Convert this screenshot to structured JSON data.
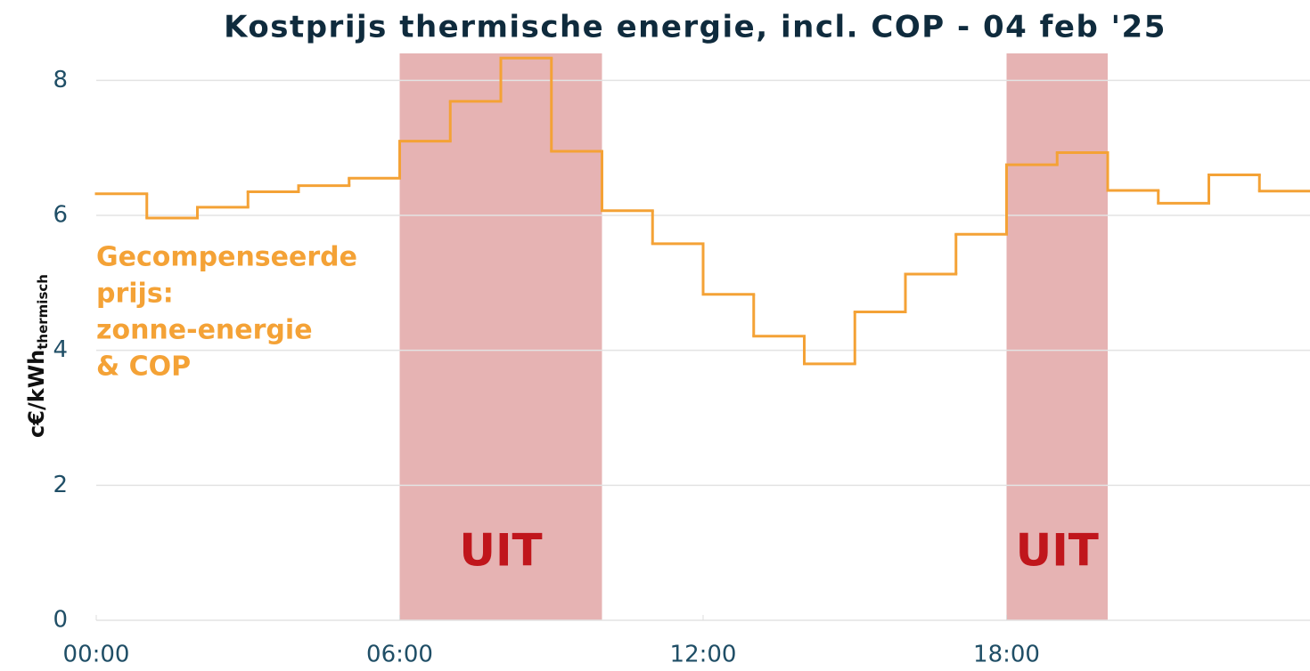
{
  "chart_data": {
    "type": "step",
    "title": "Kostprijs thermische energie, incl. COP - 04 feb '25",
    "y_label": "c€/kWh",
    "y_label_subscript": "thermisch",
    "annotation": [
      "Gecompenseerde",
      "prijs:",
      "zonne-energie",
      "& COP"
    ],
    "x": [
      0,
      1,
      2,
      3,
      4,
      5,
      6,
      7,
      8,
      9,
      10,
      11,
      12,
      13,
      14,
      15,
      16,
      17,
      18,
      19,
      20,
      21,
      22,
      23
    ],
    "series": [
      {
        "name": "Gecompenseerde prijs",
        "color": "#f4a236",
        "values": [
          6.32,
          5.96,
          6.12,
          6.35,
          6.44,
          6.55,
          7.1,
          7.69,
          8.33,
          6.95,
          6.07,
          5.58,
          4.83,
          4.21,
          3.8,
          4.57,
          5.13,
          5.72,
          6.75,
          6.93,
          6.37,
          6.18,
          6.6,
          6.36
        ]
      }
    ],
    "shaded_regions": [
      {
        "start": 6,
        "end": 10,
        "label": "UIT",
        "color": "#d98a8a"
      },
      {
        "start": 18,
        "end": 20,
        "label": "UIT",
        "color": "#d98a8a"
      }
    ],
    "xlim": [
      0,
      24
    ],
    "xticks": [
      {
        "value": 0,
        "label": "00:00"
      },
      {
        "value": 6,
        "label": "06:00"
      },
      {
        "value": 12,
        "label": "12:00"
      },
      {
        "value": 18,
        "label": "18:00"
      }
    ],
    "ylim": [
      0,
      8.4
    ],
    "yticks": [
      0,
      2,
      4,
      6,
      8
    ],
    "grid": true
  }
}
